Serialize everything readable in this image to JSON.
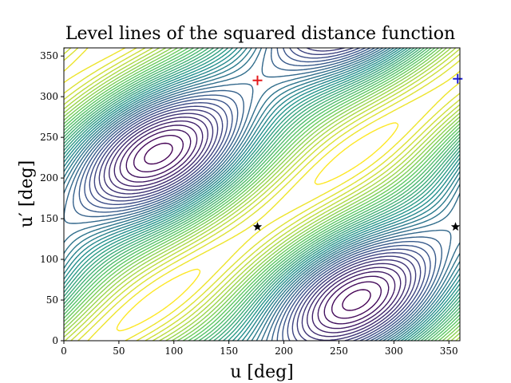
{
  "chart_data": {
    "type": "contour",
    "title": "Level lines of the squared distance function",
    "xlabel": "u [deg]",
    "ylabel": "u′ [deg]",
    "xlim": [
      0,
      360
    ],
    "ylim": [
      0,
      360
    ],
    "xticks": [
      0,
      50,
      100,
      150,
      200,
      250,
      300,
      350
    ],
    "yticks": [
      0,
      50,
      100,
      150,
      200,
      250,
      300,
      350
    ],
    "grid": false,
    "colormap": [
      "#440154",
      "#3b528b",
      "#21918c",
      "#5ec962",
      "#fde725"
    ],
    "level_count": 40,
    "maxima": [
      {
        "u": 176,
        "u_prime": 320,
        "marker": "+",
        "color": "#e41a1c"
      },
      {
        "u": 358,
        "u_prime": 322,
        "marker": "+",
        "color": "#1f1fd6"
      }
    ],
    "minima": [
      {
        "u": 176,
        "u_prime": 140,
        "marker": "star",
        "color": "#000000"
      },
      {
        "u": 356,
        "u_prime": 140,
        "marker": "star",
        "color": "#000000"
      }
    ]
  }
}
